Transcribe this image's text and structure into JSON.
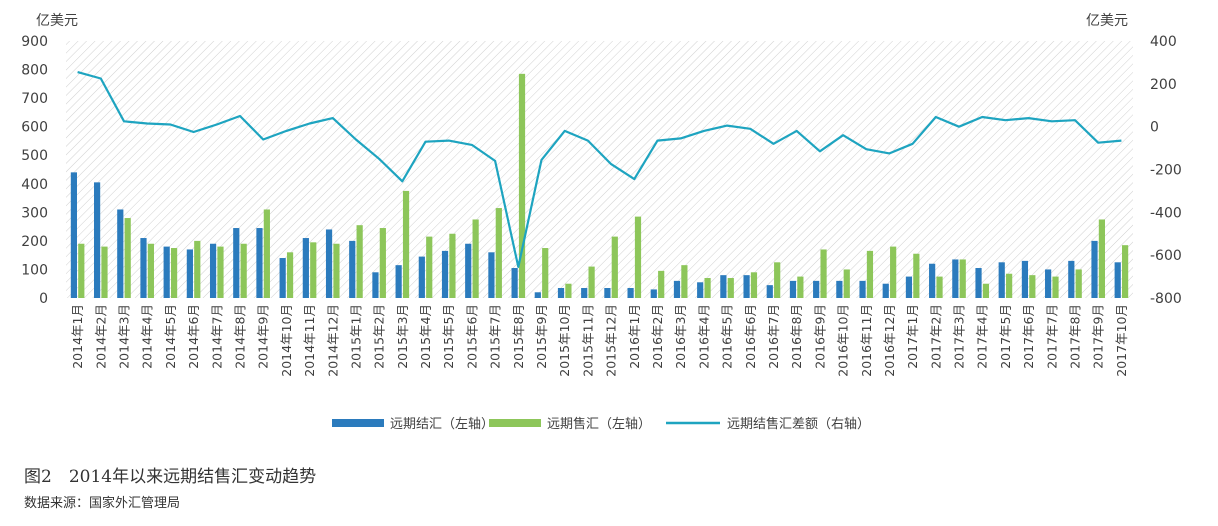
{
  "figure": {
    "title": "图2　2014年以来远期结售汇变动趋势",
    "source": "数据来源：国家外汇管理局"
  },
  "colors": {
    "settlement": "#2b7bbd",
    "sale": "#8dc65a",
    "diff": "#1ea4c0",
    "axis_text": "#404040"
  },
  "chart_data": {
    "type": "bar",
    "y_left_unit": "亿美元",
    "y_right_unit": "亿美元",
    "ylim_left": [
      0,
      900
    ],
    "ylim_right": [
      -800,
      400
    ],
    "yticks_left": [
      "0",
      "100",
      "200",
      "300",
      "400",
      "500",
      "600",
      "700",
      "800",
      "900"
    ],
    "yticks_right": [
      "-800",
      "-600",
      "-400",
      "-200",
      "0",
      "200",
      "400"
    ],
    "grid": "hatched plot background",
    "legend_position": "bottom",
    "categories": [
      "2014年1月",
      "2014年2月",
      "2014年3月",
      "2014年4月",
      "2014年5月",
      "2014年6月",
      "2014年7月",
      "2014年8月",
      "2014年9月",
      "2014年10月",
      "2014年11月",
      "2014年12月",
      "2015年1月",
      "2015年2月",
      "2015年3月",
      "2015年4月",
      "2015年5月",
      "2015年6月",
      "2015年7月",
      "2015年8月",
      "2015年9月",
      "2015年10月",
      "2015年11月",
      "2015年12月",
      "2016年1月",
      "2016年2月",
      "2016年3月",
      "2016年4月",
      "2016年5月",
      "2016年6月",
      "2016年7月",
      "2016年8月",
      "2016年9月",
      "2016年10月",
      "2016年11月",
      "2016年12月",
      "2017年1月",
      "2017年2月",
      "2017年3月",
      "2017年4月",
      "2017年5月",
      "2017年6月",
      "2017年7月",
      "2017年8月",
      "2017年9月",
      "2017年10月"
    ],
    "series": [
      {
        "name": "远期结汇（左轴）",
        "type": "bar",
        "axis": "left",
        "values": [
          440,
          405,
          310,
          210,
          180,
          170,
          190,
          245,
          245,
          140,
          210,
          240,
          200,
          90,
          115,
          145,
          165,
          190,
          160,
          105,
          20,
          35,
          35,
          35,
          35,
          30,
          60,
          55,
          80,
          80,
          45,
          60,
          60,
          60,
          60,
          50,
          75,
          120,
          135,
          105,
          125,
          130,
          100,
          130,
          200,
          125
        ]
      },
      {
        "name": "远期售汇（左轴）",
        "type": "bar",
        "axis": "left",
        "values": [
          190,
          180,
          280,
          190,
          175,
          200,
          180,
          190,
          310,
          160,
          195,
          190,
          255,
          245,
          375,
          215,
          225,
          275,
          315,
          785,
          175,
          50,
          110,
          215,
          285,
          95,
          115,
          70,
          70,
          90,
          125,
          75,
          170,
          100,
          165,
          180,
          155,
          75,
          135,
          50,
          85,
          80,
          75,
          100,
          275,
          185
        ]
      },
      {
        "name": "远期结售汇差额（右轴）",
        "type": "line",
        "axis": "right",
        "values": [
          255,
          225,
          25,
          15,
          10,
          -25,
          10,
          50,
          -60,
          -20,
          15,
          40,
          -60,
          -150,
          -255,
          -70,
          -65,
          -85,
          -160,
          -655,
          -155,
          -20,
          -65,
          -175,
          -245,
          -65,
          -55,
          -20,
          5,
          -10,
          -80,
          -20,
          -115,
          -40,
          -105,
          -125,
          -80,
          45,
          0,
          45,
          30,
          40,
          25,
          30,
          -75,
          -65
        ]
      }
    ]
  }
}
